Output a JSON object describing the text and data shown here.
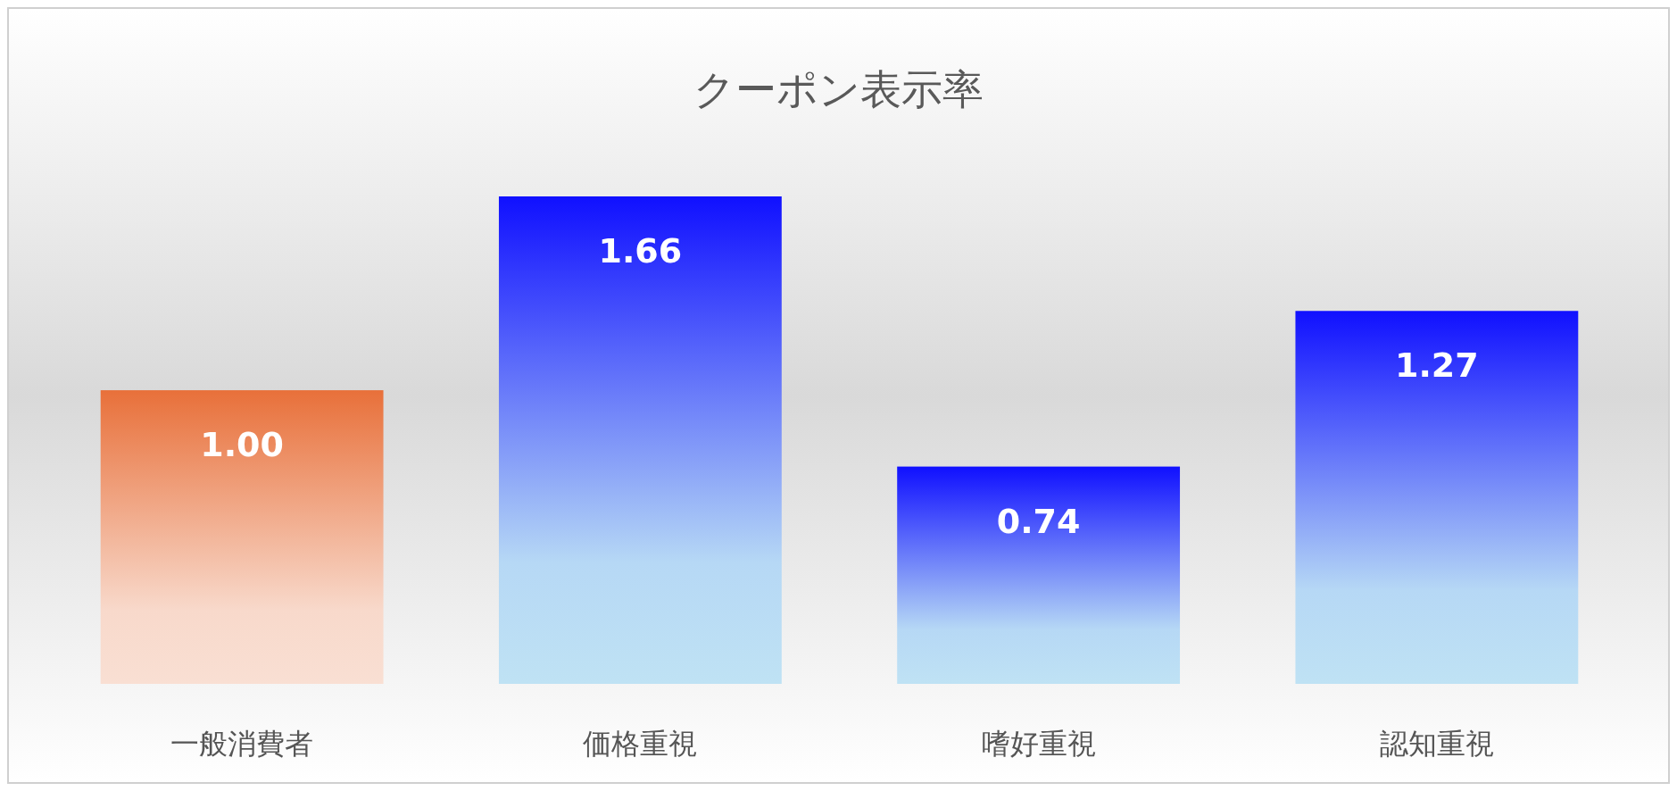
{
  "chart_data": {
    "type": "bar",
    "title": "クーポン表示率",
    "categories": [
      "一般消費者",
      "価格重視",
      "嗜好重視",
      "認知重視"
    ],
    "values": [
      1.0,
      1.66,
      0.74,
      1.27
    ],
    "colors": [
      "#e8703a",
      "#1010ff",
      "#1010ff",
      "#1010ff"
    ],
    "value_labels": [
      "1.00",
      "1.66",
      "0.74",
      "1.27"
    ]
  }
}
